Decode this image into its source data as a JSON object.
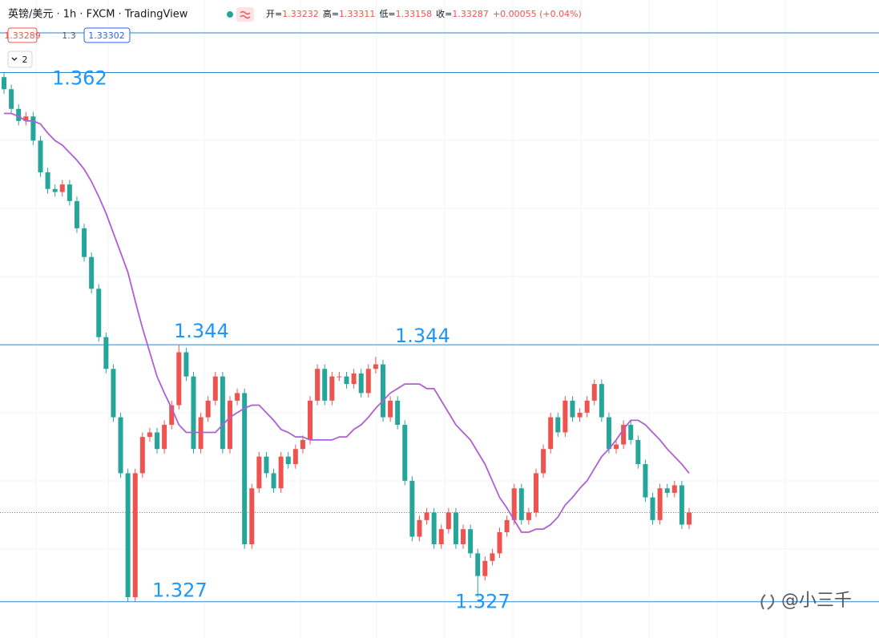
{
  "chart_data": {
    "type": "candlestick",
    "title": "英镑/美元 · 1h · FXCM · TradingView",
    "legend": [
      {
        "label": "开=",
        "value": 1.33232
      },
      {
        "label": "高=",
        "value": 1.33311
      },
      {
        "label": "低=",
        "value": 1.33158
      },
      {
        "label": "收=",
        "value": 1.33287
      }
    ],
    "change": "+0.00055 (+0.04%)",
    "price_boxes": [
      "1.33289",
      "1.3",
      "1.33302"
    ],
    "indicator_count": "2",
    "watermark": "@小三千",
    "up_color": "#ef5350",
    "down_color": "#26a69a",
    "ylim": [
      1.3246,
      1.3668
    ],
    "levels": [
      1.362,
      1.344,
      1.327
    ],
    "level_color": "#2f86d0",
    "level_labels": [
      1.362,
      1.344,
      1.344,
      1.327,
      1.327
    ],
    "open": [
      1.3617,
      1.3609,
      1.3596,
      1.3588,
      1.3591,
      1.3575,
      1.3554,
      1.3543,
      1.3541,
      1.3546,
      1.3535,
      1.3517,
      1.3498,
      1.3477,
      1.3445,
      1.3424,
      1.3392,
      1.3355,
      1.3273,
      1.3355,
      1.3379,
      1.3382,
      1.3371,
      1.3387,
      1.34,
      1.3435,
      1.3419,
      1.3371,
      1.3392,
      1.3403,
      1.3419,
      1.3371,
      1.3403,
      1.3408,
      1.3308,
      1.3345,
      1.3366,
      1.3355,
      1.3345,
      1.3366,
      1.3361,
      1.3371,
      1.3377,
      1.3403,
      1.3424,
      1.3403,
      1.3419,
      1.3419,
      1.3414,
      1.3421,
      1.3408,
      1.3424,
      1.3427,
      1.3392,
      1.3403,
      1.3387,
      1.335,
      1.3313,
      1.3324,
      1.3329,
      1.3308,
      1.3318,
      1.3329,
      1.3308,
      1.3318,
      1.3302,
      1.3287,
      1.3297,
      1.3302,
      1.3316,
      1.3324,
      1.3345,
      1.3324,
      1.3329,
      1.3355,
      1.3371,
      1.3392,
      1.3382,
      1.3403,
      1.3392,
      1.3395,
      1.3403,
      1.3414,
      1.3392,
      1.3371,
      1.3374,
      1.3387,
      1.3377,
      1.3361,
      1.3339,
      1.3324,
      1.3345,
      1.3342,
      1.3347,
      1.3321
    ],
    "high": [
      1.362,
      1.3612,
      1.3599,
      1.3594,
      1.3594,
      1.3578,
      1.3557,
      1.3546,
      1.3549,
      1.3549,
      1.3538,
      1.352,
      1.3501,
      1.348,
      1.3448,
      1.3427,
      1.3395,
      1.3358,
      1.3358,
      1.3382,
      1.3385,
      1.3385,
      1.339,
      1.3403,
      1.344,
      1.3438,
      1.3422,
      1.3395,
      1.3406,
      1.3422,
      1.3422,
      1.3406,
      1.3411,
      1.3411,
      1.3348,
      1.3369,
      1.3369,
      1.3358,
      1.3369,
      1.3369,
      1.3374,
      1.338,
      1.3406,
      1.3427,
      1.3427,
      1.3422,
      1.3422,
      1.3422,
      1.3424,
      1.3424,
      1.3427,
      1.3432,
      1.343,
      1.3406,
      1.3406,
      1.339,
      1.3353,
      1.3327,
      1.3332,
      1.3332,
      1.3321,
      1.3332,
      1.3332,
      1.3321,
      1.3321,
      1.3305,
      1.33,
      1.3305,
      1.3319,
      1.3327,
      1.3348,
      1.3348,
      1.3332,
      1.3358,
      1.3374,
      1.3395,
      1.3395,
      1.3406,
      1.3406,
      1.3398,
      1.3406,
      1.3417,
      1.3417,
      1.3395,
      1.3377,
      1.339,
      1.339,
      1.338,
      1.3364,
      1.3342,
      1.3348,
      1.3348,
      1.335,
      1.335,
      1.3332
    ],
    "low": [
      1.3606,
      1.3593,
      1.3585,
      1.3585,
      1.3572,
      1.3551,
      1.354,
      1.3538,
      1.3538,
      1.3532,
      1.3514,
      1.3495,
      1.3474,
      1.3442,
      1.3421,
      1.3389,
      1.3352,
      1.327,
      1.327,
      1.3352,
      1.3376,
      1.3368,
      1.3368,
      1.3384,
      1.3397,
      1.3416,
      1.3368,
      1.3368,
      1.3389,
      1.34,
      1.3368,
      1.3368,
      1.34,
      1.3305,
      1.3305,
      1.3342,
      1.3352,
      1.3342,
      1.3342,
      1.3358,
      1.3358,
      1.3368,
      1.3374,
      1.34,
      1.34,
      1.34,
      1.3416,
      1.3411,
      1.3411,
      1.3405,
      1.3405,
      1.3421,
      1.3389,
      1.3389,
      1.3384,
      1.3347,
      1.331,
      1.331,
      1.3321,
      1.3305,
      1.3305,
      1.3315,
      1.3305,
      1.3305,
      1.3299,
      1.3273,
      1.3284,
      1.3294,
      1.3299,
      1.3313,
      1.3321,
      1.3321,
      1.3321,
      1.3326,
      1.3352,
      1.3368,
      1.3379,
      1.3379,
      1.3389,
      1.3389,
      1.3392,
      1.34,
      1.3389,
      1.3368,
      1.3368,
      1.3371,
      1.3374,
      1.3358,
      1.3336,
      1.3321,
      1.3321,
      1.3339,
      1.3339,
      1.3318,
      1.3318
    ],
    "close": [
      1.3609,
      1.3596,
      1.3588,
      1.3591,
      1.3575,
      1.3554,
      1.3543,
      1.3541,
      1.3546,
      1.3535,
      1.3517,
      1.3498,
      1.3477,
      1.3445,
      1.3424,
      1.3392,
      1.3355,
      1.3273,
      1.3355,
      1.3379,
      1.3382,
      1.3371,
      1.3387,
      1.34,
      1.3435,
      1.3419,
      1.3371,
      1.3392,
      1.3403,
      1.3419,
      1.3371,
      1.3403,
      1.3408,
      1.3308,
      1.3345,
      1.3366,
      1.3355,
      1.3345,
      1.3366,
      1.3361,
      1.3371,
      1.3377,
      1.3403,
      1.3424,
      1.3403,
      1.3419,
      1.3419,
      1.3414,
      1.3421,
      1.3408,
      1.3424,
      1.3427,
      1.3392,
      1.3403,
      1.3387,
      1.335,
      1.3313,
      1.3324,
      1.3329,
      1.3308,
      1.3318,
      1.3329,
      1.3308,
      1.3318,
      1.3302,
      1.3287,
      1.3297,
      1.3302,
      1.3316,
      1.3324,
      1.3345,
      1.3324,
      1.3329,
      1.3355,
      1.3371,
      1.3392,
      1.3382,
      1.3403,
      1.3392,
      1.3395,
      1.3403,
      1.3414,
      1.3392,
      1.3371,
      1.3374,
      1.3387,
      1.3377,
      1.3361,
      1.3339,
      1.3324,
      1.3345,
      1.3342,
      1.3347,
      1.3321,
      1.3329
    ],
    "ma": {
      "color": "#b05fd0",
      "values": [
        1.3593,
        1.3593,
        1.3591,
        1.3588,
        1.3588,
        1.3586,
        1.358,
        1.3575,
        1.3572,
        1.3567,
        1.3562,
        1.3556,
        1.3548,
        1.3538,
        1.3527,
        1.3514,
        1.3501,
        1.3488,
        1.3469,
        1.3451,
        1.3435,
        1.3419,
        1.3408,
        1.3398,
        1.3387,
        1.3382,
        1.3382,
        1.3382,
        1.3382,
        1.3382,
        1.3387,
        1.3392,
        1.3395,
        1.3398,
        1.34,
        1.34,
        1.3395,
        1.339,
        1.3384,
        1.3382,
        1.3379,
        1.3379,
        1.3377,
        1.3377,
        1.3377,
        1.3377,
        1.3379,
        1.3379,
        1.3384,
        1.3387,
        1.3392,
        1.3398,
        1.3403,
        1.3408,
        1.3411,
        1.3414,
        1.3414,
        1.3414,
        1.3411,
        1.3411,
        1.3403,
        1.3395,
        1.3387,
        1.3382,
        1.3377,
        1.3369,
        1.3361,
        1.335,
        1.3339,
        1.3332,
        1.3324,
        1.3316,
        1.3316,
        1.3318,
        1.3318,
        1.3321,
        1.3326,
        1.3334,
        1.3339,
        1.3345,
        1.335,
        1.3358,
        1.3366,
        1.3371,
        1.3377,
        1.3384,
        1.339,
        1.339,
        1.3387,
        1.3382,
        1.3377,
        1.3371,
        1.3366,
        1.3361,
        1.3355
      ]
    }
  }
}
